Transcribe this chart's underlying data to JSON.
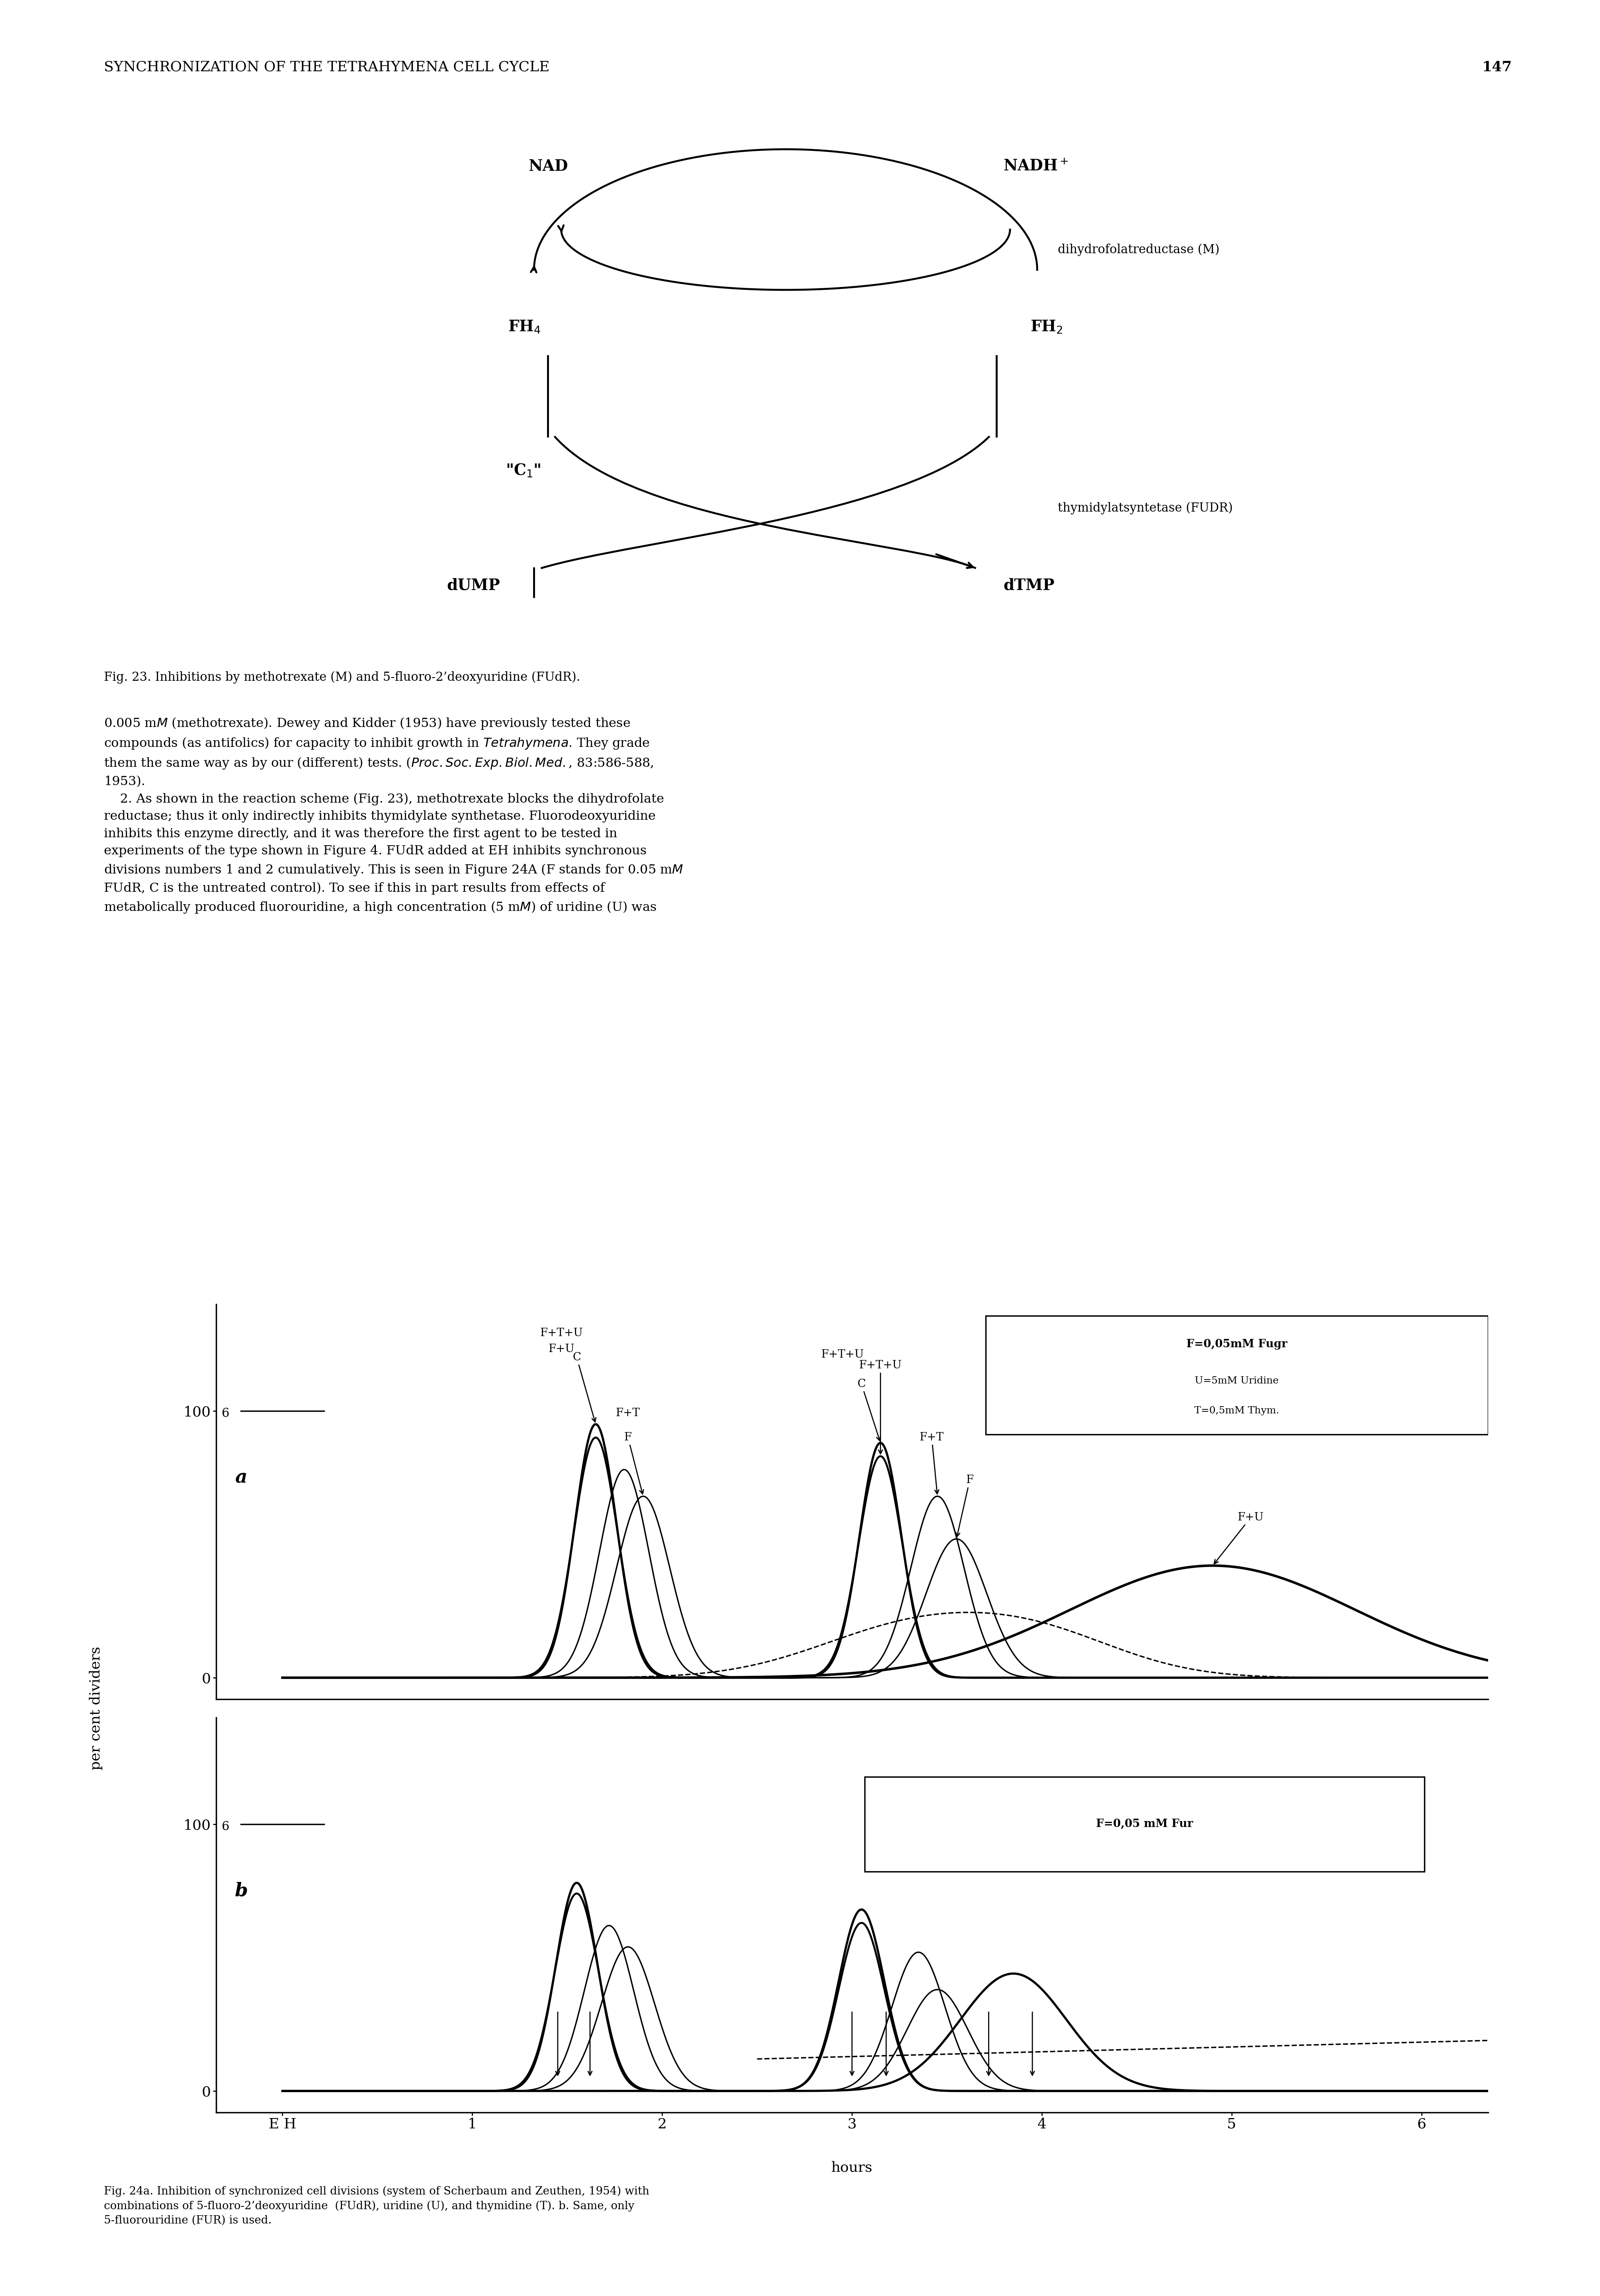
{
  "page_title": "SYNCHRONIZATION OF THE TETRAHYMENA CELL CYCLE",
  "page_number": "147",
  "fig23_caption": "Fig. 23. Inhibitions by methotrexate (M) and 5-fluoro-2’deoxyuridine (FUdR).",
  "legend_a_box": "F=0,05mM Fugr",
  "legend_a_text1": "U=5mM Uridine",
  "legend_a_text2": "T=0,5mM Thym.",
  "legend_b_box": "F=0,05 mM Fur",
  "label_a": "a",
  "label_b": "b",
  "scale_bar_label": "6",
  "ylabel": "per cent dividers",
  "xlabel": "hours",
  "background_color": "#ffffff"
}
